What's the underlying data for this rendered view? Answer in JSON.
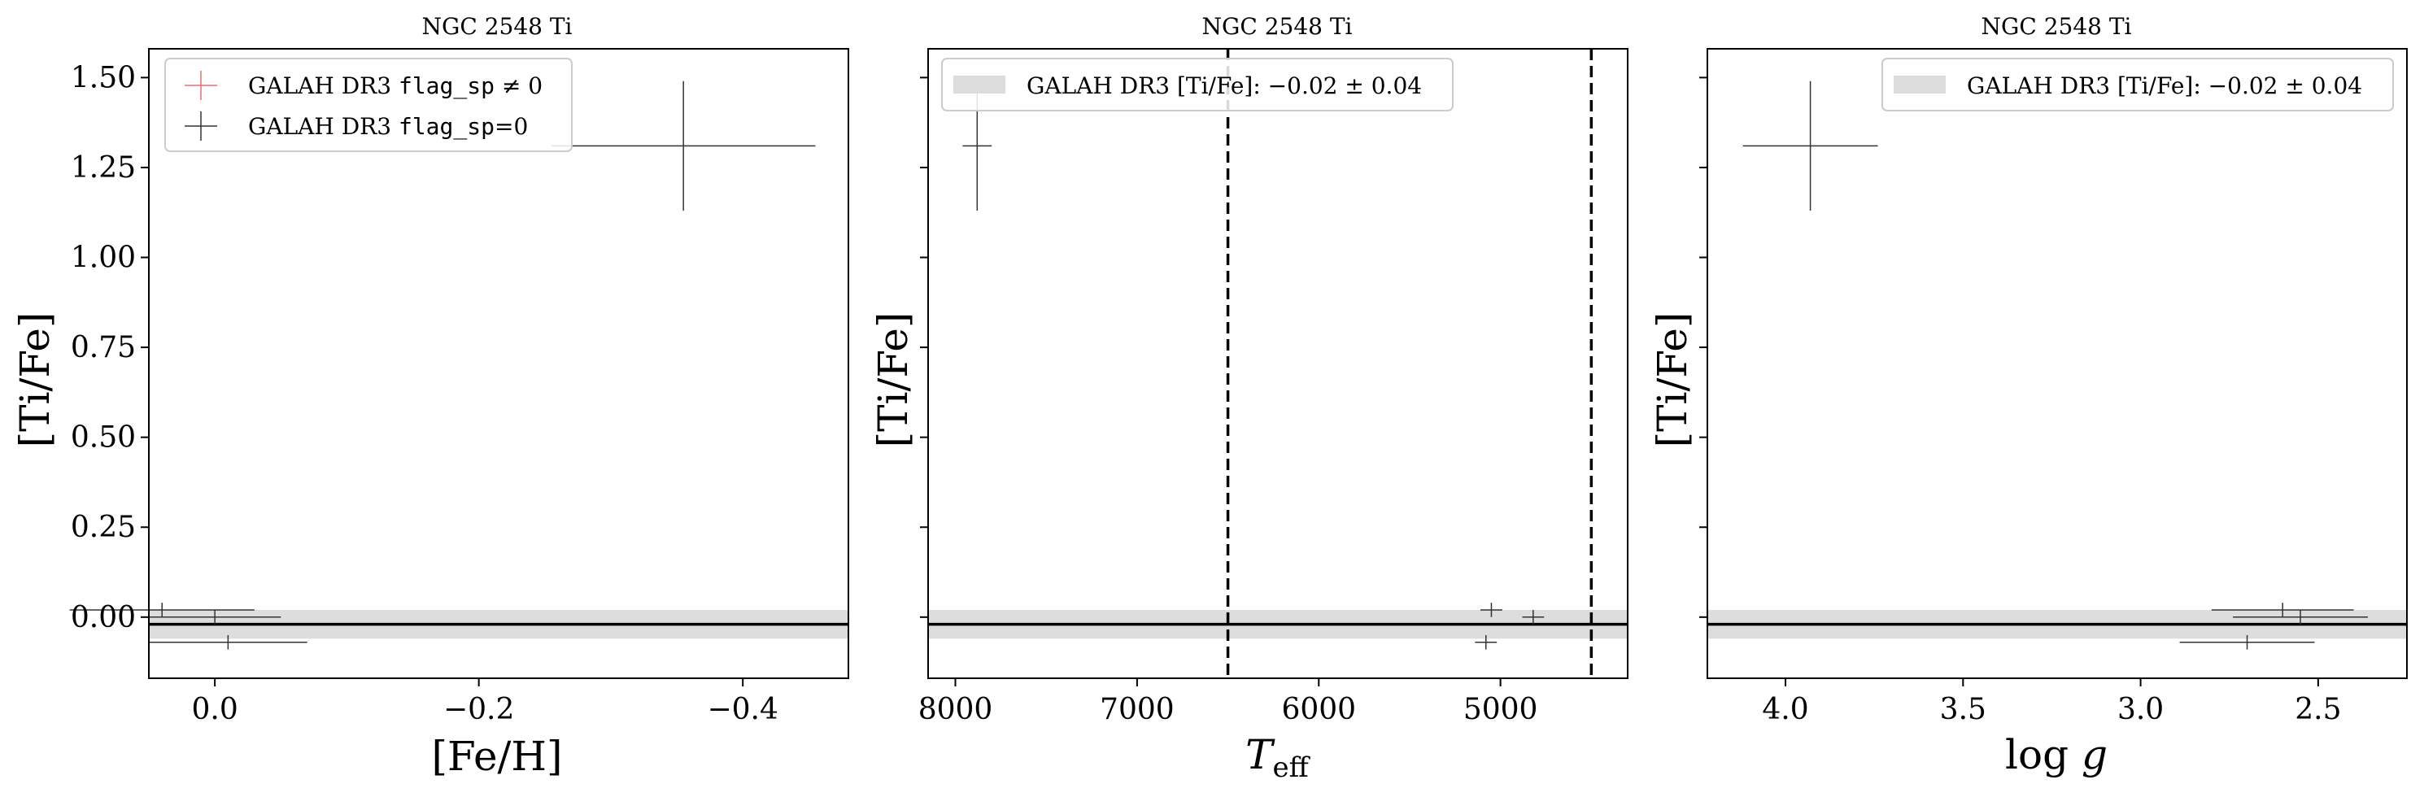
{
  "chart_data": [
    {
      "type": "scatter",
      "title": "NGC 2548 Ti",
      "xlabel": "[Fe/H]",
      "ylabel": "[Ti/Fe]",
      "xlim": [
        0.05,
        -0.48
      ],
      "ylim": [
        -0.17,
        1.58
      ],
      "xticks": [
        0.0,
        -0.2,
        -0.4
      ],
      "xtick_labels": [
        "0.0",
        "−0.2",
        "−0.4"
      ],
      "yticks": [
        0.0,
        0.25,
        0.5,
        0.75,
        1.0,
        1.25,
        1.5
      ],
      "ytick_labels": [
        "0.00",
        "0.25",
        "0.50",
        "0.75",
        "1.00",
        "1.25",
        "1.50"
      ],
      "hline": -0.02,
      "band": [
        -0.06,
        0.02
      ],
      "legend": {
        "placement": "upper-left",
        "entries": [
          {
            "pre": "GALAH DR3 ",
            "mono": "flag_sp",
            "post": " ≠ 0",
            "color": "#e8706a"
          },
          {
            "pre": "GALAH DR3 ",
            "mono": "flag_sp",
            "post": "=0",
            "color": "#333333"
          }
        ]
      },
      "points": [
        {
          "x": 0.04,
          "y": 0.02,
          "xerr": 0.07,
          "yerr": 0.02
        },
        {
          "x": -0.01,
          "y": -0.07,
          "xerr": 0.06,
          "yerr": 0.02
        },
        {
          "x": 0.0,
          "y": 0.0,
          "xerr": 0.05,
          "yerr": 0.02
        },
        {
          "x": -0.355,
          "y": 1.31,
          "xerr": 0.1,
          "yerr": 0.18
        }
      ]
    },
    {
      "type": "scatter",
      "title": "NGC 2548 Ti",
      "xlabel": "T_eff",
      "ylabel": "[Ti/Fe]",
      "xlim": [
        8150,
        4300
      ],
      "ylim": [
        -0.17,
        1.58
      ],
      "xticks": [
        8000,
        7000,
        6000,
        5000
      ],
      "xtick_labels": [
        "8000",
        "7000",
        "6000",
        "5000"
      ],
      "yticks": [
        0.0,
        0.25,
        0.5,
        0.75,
        1.0,
        1.25,
        1.5
      ],
      "vlines": [
        6500,
        4500
      ],
      "hline": -0.02,
      "band": [
        -0.06,
        0.02
      ],
      "legend": {
        "placement": "upper-left",
        "entries": [
          {
            "text": "GALAH DR3 [Ti/Fe]: −0.02 ± 0.04",
            "color": "#dddddd"
          }
        ]
      },
      "points": [
        {
          "x": 7880,
          "y": 1.31,
          "xerr": 80,
          "yerr": 0.18
        },
        {
          "x": 5050,
          "y": 0.02,
          "xerr": 60,
          "yerr": 0.02
        },
        {
          "x": 5080,
          "y": -0.07,
          "xerr": 60,
          "yerr": 0.02
        },
        {
          "x": 4820,
          "y": 0.0,
          "xerr": 60,
          "yerr": 0.02
        }
      ]
    },
    {
      "type": "scatter",
      "title": "NGC 2548 Ti",
      "xlabel": "log g",
      "ylabel": "[Ti/Fe]",
      "xlim": [
        4.22,
        2.25
      ],
      "ylim": [
        -0.17,
        1.58
      ],
      "xticks": [
        4.0,
        3.5,
        3.0,
        2.5
      ],
      "xtick_labels": [
        "4.0",
        "3.5",
        "3.0",
        "2.5"
      ],
      "yticks": [
        0.0,
        0.25,
        0.5,
        0.75,
        1.0,
        1.25,
        1.5
      ],
      "hline": -0.02,
      "band": [
        -0.06,
        0.02
      ],
      "legend": {
        "placement": "upper-right",
        "entries": [
          {
            "text": "GALAH DR3 [Ti/Fe]: −0.02 ± 0.04",
            "color": "#dddddd"
          }
        ]
      },
      "points": [
        {
          "x": 3.93,
          "y": 1.31,
          "xerr": 0.19,
          "yerr": 0.18
        },
        {
          "x": 2.6,
          "y": 0.02,
          "xerr": 0.2,
          "yerr": 0.02
        },
        {
          "x": 2.7,
          "y": -0.07,
          "xerr": 0.19,
          "yerr": 0.02
        },
        {
          "x": 2.55,
          "y": 0.0,
          "xerr": 0.19,
          "yerr": 0.02
        }
      ]
    }
  ]
}
